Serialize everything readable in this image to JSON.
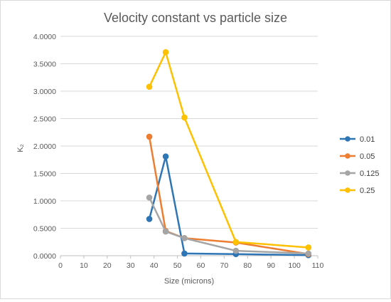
{
  "chart_data": {
    "type": "scatter",
    "title": "Velocity constant vs particle size",
    "xlabel": "Size (microns)",
    "ylabel": "K₂",
    "xlim": [
      0,
      110
    ],
    "ylim": [
      0,
      4
    ],
    "x_ticks": [
      "0",
      "10",
      "20",
      "30",
      "40",
      "50",
      "60",
      "70",
      "80",
      "90",
      "100",
      "110"
    ],
    "y_ticks": [
      "0.0000",
      "0.5000",
      "1.0000",
      "1.5000",
      "2.0000",
      "2.5000",
      "3.0000",
      "3.5000",
      "4.0000"
    ],
    "grid": "horizontal",
    "legend_position": "right",
    "series": [
      {
        "name": "0.01",
        "color": "#2E75B6",
        "x": [
          38,
          45,
          53,
          75,
          106
        ],
        "y": [
          0.67,
          1.81,
          0.04,
          0.03,
          0.01
        ]
      },
      {
        "name": "0.05",
        "color": "#ED7D31",
        "x": [
          38,
          45,
          53,
          75,
          106
        ],
        "y": [
          2.17,
          0.45,
          0.32,
          0.24,
          0.03
        ]
      },
      {
        "name": "0.125",
        "color": "#A5A5A5",
        "x": [
          38,
          45,
          53,
          75,
          106
        ],
        "y": [
          1.06,
          0.44,
          0.32,
          0.09,
          0.04
        ]
      },
      {
        "name": "0.25",
        "color": "#FFC000",
        "x": [
          38,
          45,
          53,
          75,
          106
        ],
        "y": [
          3.08,
          3.71,
          2.52,
          0.25,
          0.15
        ]
      }
    ]
  }
}
